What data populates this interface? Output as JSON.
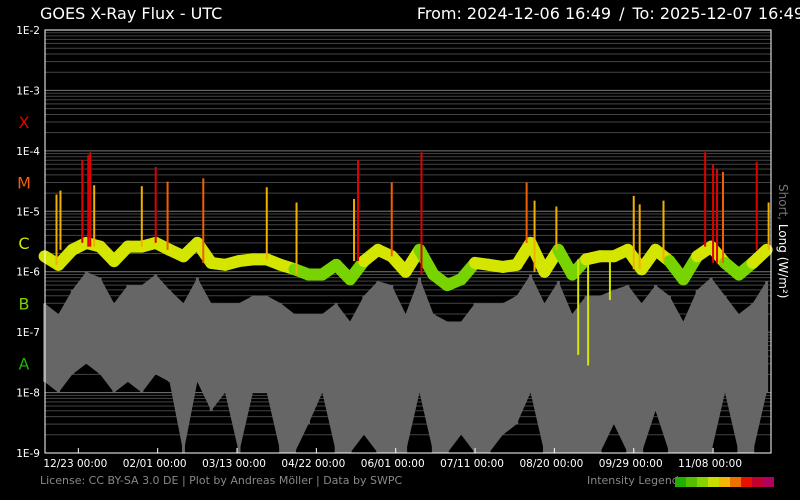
{
  "header": {
    "title": "GOES X-Ray Flux - UTC",
    "from": "From: 2024-12-06 16:49",
    "separator": "/",
    "to": "To: 2025-12-07 16:49"
  },
  "footer": {
    "credits": "License: CC BY-SA 3.0 DE | Plot by Andreas Möller | Data by SWPC",
    "legend_label": "Intensity Legend",
    "legend_colors": [
      "#22b000",
      "#55c000",
      "#88d400",
      "#c8e000",
      "#f0b800",
      "#f07000",
      "#e81000",
      "#c00030",
      "#b00060"
    ]
  },
  "chart_data": {
    "type": "line",
    "title": "GOES X-Ray Flux - UTC",
    "ylabel_short": "Short,",
    "ylabel_long": "Long (W/m²)",
    "yscale": "log",
    "ylim": [
      1e-09,
      0.01
    ],
    "xlim": [
      "2024-12-06 16:49",
      "2025-12-07 16:49"
    ],
    "grid": true,
    "y_ticks": [
      "1E-2",
      "1E-3",
      "1E-4",
      "1E-5",
      "1E-6",
      "1E-7",
      "1E-8",
      "1E-9"
    ],
    "classes": [
      {
        "label": "X",
        "flux": 0.0003,
        "color": "#e00000"
      },
      {
        "label": "M",
        "flux": 3e-05,
        "color": "#f06000"
      },
      {
        "label": "C",
        "flux": 3e-06,
        "color": "#d4e600"
      },
      {
        "label": "B",
        "flux": 3e-07,
        "color": "#77d400"
      },
      {
        "label": "A",
        "flux": 3e-08,
        "color": "#22b000"
      }
    ],
    "x_ticks": [
      {
        "date": "2024-12-23",
        "label": "12/23 00:00"
      },
      {
        "date": "2025-02-01",
        "label": "02/01 00:00"
      },
      {
        "date": "2025-03-13",
        "label": "03/13 00:00"
      },
      {
        "date": "2025-04-22",
        "label": "04/22 00:00"
      },
      {
        "date": "2025-06-01",
        "label": "06/01 00:00"
      },
      {
        "date": "2025-07-11",
        "label": "07/11 00:00"
      },
      {
        "date": "2025-08-20",
        "label": "08/20 00:00"
      },
      {
        "date": "2025-09-29",
        "label": "09/29 00:00"
      },
      {
        "date": "2025-11-08",
        "label": "11/08 00:00"
      }
    ],
    "series": [
      {
        "name": "Long",
        "color": "#d4e600",
        "dates": [
          "2024-12-06",
          "2024-12-13",
          "2024-12-20",
          "2024-12-27",
          "2025-01-03",
          "2025-01-10",
          "2025-01-17",
          "2025-01-24",
          "2025-01-31",
          "2025-02-07",
          "2025-02-14",
          "2025-02-21",
          "2025-02-28",
          "2025-03-07",
          "2025-03-14",
          "2025-03-21",
          "2025-03-28",
          "2025-04-04",
          "2025-04-11",
          "2025-04-18",
          "2025-04-25",
          "2025-05-02",
          "2025-05-09",
          "2025-05-16",
          "2025-05-23",
          "2025-05-30",
          "2025-06-06",
          "2025-06-13",
          "2025-06-20",
          "2025-06-27",
          "2025-07-04",
          "2025-07-11",
          "2025-07-18",
          "2025-07-25",
          "2025-08-01",
          "2025-08-08",
          "2025-08-15",
          "2025-08-22",
          "2025-08-29",
          "2025-09-05",
          "2025-09-12",
          "2025-09-19",
          "2025-09-26",
          "2025-10-03",
          "2025-10-10",
          "2025-10-17",
          "2025-10-24",
          "2025-10-31",
          "2025-11-07",
          "2025-11-14",
          "2025-11-21",
          "2025-11-28",
          "2025-12-05"
        ],
        "values": [
          1.8e-06,
          1.3e-06,
          2.3e-06,
          3e-06,
          2.6e-06,
          1.5e-06,
          2.6e-06,
          2.6e-06,
          3e-06,
          2.3e-06,
          1.8e-06,
          3e-06,
          1.4e-06,
          1.3e-06,
          1.5e-06,
          1.6e-06,
          1.6e-06,
          1.3e-06,
          1.1e-06,
          9e-07,
          9e-07,
          1.3e-06,
          7.5e-07,
          1.5e-06,
          2.3e-06,
          1.8e-06,
          1e-06,
          2.3e-06,
          9e-07,
          6e-07,
          7.5e-07,
          1.4e-06,
          1.3e-06,
          1.2e-06,
          1.3e-06,
          3e-06,
          1e-06,
          2.3e-06,
          9e-07,
          1.6e-06,
          1.8e-06,
          1.8e-06,
          2.3e-06,
          1.1e-06,
          2.3e-06,
          1.5e-06,
          7.5e-07,
          1.8e-06,
          2.6e-06,
          1.4e-06,
          9e-07,
          1.4e-06,
          2.3e-06
        ],
        "peaks": [
          {
            "date": "2024-12-12",
            "value": 1.9e-05
          },
          {
            "date": "2024-12-14",
            "value": 2.2e-05
          },
          {
            "date": "2024-12-25",
            "value": 7e-05
          },
          {
            "date": "2024-12-28",
            "value": 8.5e-05
          },
          {
            "date": "2024-12-29",
            "value": 9.5e-05
          },
          {
            "date": "2024-12-31",
            "value": 2.7e-05
          },
          {
            "date": "2025-01-24",
            "value": 2.6e-05
          },
          {
            "date": "2025-01-31",
            "value": 5.4e-05
          },
          {
            "date": "2025-02-06",
            "value": 3.1e-05
          },
          {
            "date": "2025-02-24",
            "value": 3.5e-05
          },
          {
            "date": "2025-03-28",
            "value": 2.5e-05
          },
          {
            "date": "2025-04-12",
            "value": 1.4e-05
          },
          {
            "date": "2025-05-11",
            "value": 1.6e-05
          },
          {
            "date": "2025-05-13",
            "value": 7e-05
          },
          {
            "date": "2025-05-30",
            "value": 3e-05
          },
          {
            "date": "2025-06-14",
            "value": 9.5e-05
          },
          {
            "date": "2025-08-06",
            "value": 3e-05
          },
          {
            "date": "2025-08-10",
            "value": 1.5e-05
          },
          {
            "date": "2025-08-21",
            "value": 1.2e-05
          },
          {
            "date": "2025-09-29",
            "value": 1.8e-05
          },
          {
            "date": "2025-10-02",
            "value": 1.3e-05
          },
          {
            "date": "2025-10-14",
            "value": 1.5e-05
          },
          {
            "date": "2025-11-04",
            "value": 9.5e-05
          },
          {
            "date": "2025-11-08",
            "value": 6e-05
          },
          {
            "date": "2025-11-10",
            "value": 5e-05
          },
          {
            "date": "2025-11-13",
            "value": 4.5e-05
          },
          {
            "date": "2025-11-30",
            "value": 6.6e-05
          },
          {
            "date": "2025-12-06",
            "value": 1.4e-05
          }
        ],
        "dips": [
          {
            "date": "2025-09-01",
            "value": 4.2e-08
          },
          {
            "date": "2025-09-06",
            "value": 2.8e-08
          },
          {
            "date": "2025-09-17",
            "value": 3.4e-07
          }
        ]
      },
      {
        "name": "Short",
        "color": "#666666",
        "dates": [
          "2024-12-06",
          "2024-12-13",
          "2024-12-20",
          "2024-12-27",
          "2025-01-03",
          "2025-01-10",
          "2025-01-17",
          "2025-01-24",
          "2025-01-31",
          "2025-02-07",
          "2025-02-14",
          "2025-02-21",
          "2025-02-28",
          "2025-03-07",
          "2025-03-14",
          "2025-03-21",
          "2025-03-28",
          "2025-04-04",
          "2025-04-11",
          "2025-04-18",
          "2025-04-25",
          "2025-05-02",
          "2025-05-09",
          "2025-05-16",
          "2025-05-23",
          "2025-05-30",
          "2025-06-06",
          "2025-06-13",
          "2025-06-20",
          "2025-06-27",
          "2025-07-04",
          "2025-07-11",
          "2025-07-18",
          "2025-07-25",
          "2025-08-01",
          "2025-08-08",
          "2025-08-15",
          "2025-08-22",
          "2025-08-29",
          "2025-09-05",
          "2025-09-12",
          "2025-09-19",
          "2025-09-26",
          "2025-10-03",
          "2025-10-10",
          "2025-10-17",
          "2025-10-24",
          "2025-10-31",
          "2025-11-07",
          "2025-11-14",
          "2025-11-21",
          "2025-11-28",
          "2025-12-05"
        ],
        "high": [
          3e-07,
          2e-07,
          5e-07,
          1e-06,
          8e-07,
          3e-07,
          6e-07,
          6e-07,
          9e-07,
          5e-07,
          3e-07,
          8e-07,
          3e-07,
          3e-07,
          3e-07,
          4e-07,
          4e-07,
          3e-07,
          2e-07,
          2e-07,
          2e-07,
          3e-07,
          1.5e-07,
          4e-07,
          7e-07,
          6e-07,
          2e-07,
          8e-07,
          2e-07,
          1.5e-07,
          1.5e-07,
          3e-07,
          3e-07,
          3e-07,
          4e-07,
          9e-07,
          3e-07,
          7e-07,
          2e-07,
          4e-07,
          4e-07,
          5e-07,
          6e-07,
          3e-07,
          6e-07,
          4e-07,
          1.5e-07,
          5e-07,
          8e-07,
          4e-07,
          2e-07,
          3e-07,
          7e-07
        ],
        "low": [
          1.5e-08,
          1e-08,
          2e-08,
          3e-08,
          2e-08,
          1e-08,
          1.5e-08,
          1e-08,
          2e-08,
          1.5e-08,
          1e-09,
          1.5e-08,
          5e-09,
          1e-08,
          1e-09,
          1e-08,
          1e-08,
          1e-09,
          1e-09,
          3e-09,
          1e-08,
          1e-09,
          1e-09,
          2e-09,
          1e-09,
          1e-09,
          1e-09,
          1e-08,
          1e-09,
          1e-09,
          2e-09,
          1e-09,
          1e-09,
          2e-09,
          3e-09,
          1e-08,
          1e-09,
          1e-09,
          1e-09,
          1e-09,
          1e-09,
          3e-09,
          1e-09,
          1e-09,
          5e-09,
          1e-09,
          1e-09,
          1e-09,
          1e-09,
          1e-08,
          1e-09,
          1e-09,
          1e-08
        ]
      }
    ]
  }
}
